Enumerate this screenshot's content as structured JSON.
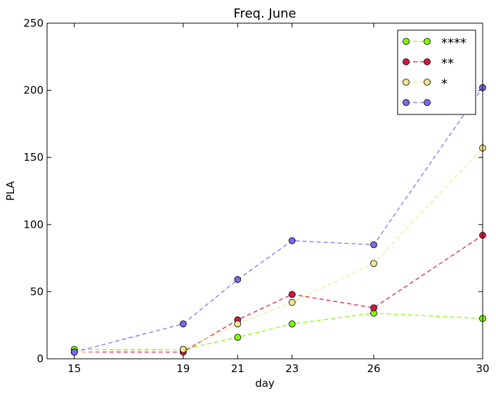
{
  "chart_data": {
    "type": "line",
    "title": "Freq. June",
    "xlabel": "day",
    "ylabel": "PLA",
    "x": [
      15,
      19,
      21,
      23,
      26,
      30
    ],
    "xticks": [
      15,
      19,
      21,
      23,
      26,
      30
    ],
    "xlim": [
      14,
      30
    ],
    "ylim": [
      0,
      250
    ],
    "yticks": [
      0,
      50,
      100,
      150,
      200,
      250
    ],
    "grid": false,
    "legend_position": "top-right",
    "series": [
      {
        "name": "****",
        "color": "#7cfc00",
        "values": [
          7,
          7,
          16,
          26,
          34,
          30
        ]
      },
      {
        "name": "**",
        "color": "#dc143c",
        "values": [
          5,
          5,
          29,
          48,
          38,
          92
        ]
      },
      {
        "name": "*",
        "color": "#f0e68c",
        "values": [
          5,
          7,
          26,
          42,
          71,
          157
        ]
      },
      {
        "color": "#7b68ee",
        "values": [
          5,
          26,
          59,
          88,
          85,
          202
        ]
      }
    ]
  }
}
